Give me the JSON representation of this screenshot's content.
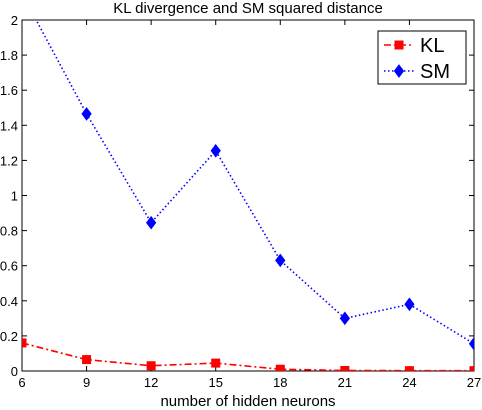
{
  "chart_data": {
    "type": "line",
    "title": "KL divergence and SM squared distance",
    "xlabel": "number of hidden neurons",
    "ylabel": "",
    "xlim": [
      6,
      27
    ],
    "ylim": [
      0,
      2
    ],
    "xticks": [
      6,
      9,
      12,
      15,
      18,
      21,
      24,
      27
    ],
    "yticks": [
      0,
      0.2,
      0.4,
      0.6,
      0.8,
      1,
      1.2,
      1.4,
      1.6,
      1.8,
      2
    ],
    "x": [
      6,
      9,
      12,
      15,
      18,
      21,
      24,
      27
    ],
    "series": [
      {
        "name": "KL",
        "values": [
          0.16,
          0.065,
          0.03,
          0.045,
          0.01,
          0.003,
          0.002,
          0.002
        ],
        "color": "#ff0000",
        "line_style": "dash-dot",
        "marker": "square"
      },
      {
        "name": "SM",
        "values": [
          2.15,
          1.465,
          0.845,
          1.255,
          0.63,
          0.3,
          0.38,
          0.155
        ],
        "color": "#0000ff",
        "line_style": "dotted",
        "marker": "diamond"
      }
    ],
    "legend_position": "top-right",
    "grid": false
  }
}
